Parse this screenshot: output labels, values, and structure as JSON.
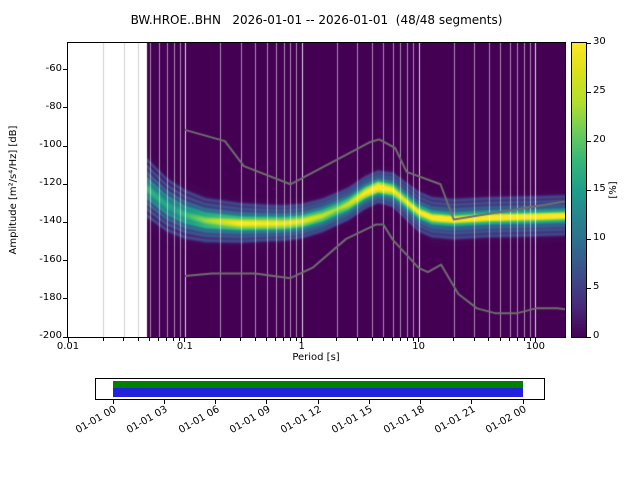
{
  "chart_data": {
    "type": "heatmap",
    "title": "BW.HROE..BHN   2026-01-01 -- 2026-01-01  (48/48 segments)",
    "xlabel": "Period [s]",
    "ylabel": "Amplitude [m²/s⁴/Hz] [dB]",
    "xscale": "log",
    "xlim": [
      0.01,
      179
    ],
    "ylim": [
      -200,
      -46
    ],
    "xticks": [
      0.01,
      0.1,
      1,
      10,
      100
    ],
    "xtick_labels": [
      "0.01",
      "0.1",
      "1",
      "10",
      "100"
    ],
    "yticks": [
      -60,
      -80,
      -100,
      -120,
      -140,
      -160,
      -180,
      -200
    ],
    "grid": "vertical log major+minor",
    "background_nodata": "#ffffff",
    "data_extent": {
      "period_min": 0.047,
      "period_max": 179
    },
    "colormap": {
      "name": "viridis",
      "stops": [
        [
          0,
          "#440154"
        ],
        [
          0.1,
          "#482878"
        ],
        [
          0.2,
          "#3e4989"
        ],
        [
          0.3,
          "#31688e"
        ],
        [
          0.4,
          "#26828e"
        ],
        [
          0.5,
          "#1f9e89"
        ],
        [
          0.6,
          "#35b779"
        ],
        [
          0.7,
          "#6dcd59"
        ],
        [
          0.8,
          "#b4de2c"
        ],
        [
          0.9,
          "#d8e219"
        ],
        [
          1,
          "#fde725"
        ]
      ]
    },
    "colorbar": {
      "label": "[%]",
      "ticks": [
        0,
        5,
        10,
        15,
        20,
        25,
        30
      ],
      "vmin": 0,
      "vmax": 30
    },
    "psd_distribution": {
      "mode_curve": {
        "periods": [
          0.047,
          0.07,
          0.1,
          0.15,
          0.3,
          0.7,
          1.0,
          1.5,
          2.5,
          3.5,
          4.5,
          6.0,
          8.0,
          10.0,
          13.0,
          20.0,
          40.0,
          100.0,
          179.0
        ],
        "db": [
          -122,
          -131,
          -136,
          -139,
          -140.5,
          -140.5,
          -139.5,
          -136.5,
          -130.5,
          -124.5,
          -121.5,
          -123,
          -129.5,
          -134.5,
          -137.5,
          -138.5,
          -137.5,
          -137,
          -136.5
        ]
      },
      "core_pct": {
        "periods": [
          0.047,
          0.08,
          0.15,
          0.3,
          1.0,
          2.0,
          3.0,
          4.5,
          7.0,
          10.0,
          15.0,
          179
        ],
        "values": [
          12,
          10,
          18,
          26,
          24,
          19,
          24,
          30,
          24,
          26,
          30,
          30
        ]
      },
      "core_sigma_db": {
        "periods": [
          0.047,
          0.1,
          0.3,
          1,
          5,
          10,
          20,
          179
        ],
        "values": [
          3,
          3,
          2.2,
          2,
          2,
          2,
          1.8,
          1.8
        ]
      },
      "haze_pct": {
        "periods": [
          0.047,
          0.1,
          0.3,
          1,
          5,
          10,
          179
        ],
        "values": [
          6,
          5,
          4.5,
          4.5,
          4,
          4,
          3.5
        ]
      },
      "haze_sigma_db": {
        "periods": [
          0.047,
          0.08,
          0.15,
          0.5,
          2,
          5,
          10,
          179
        ],
        "values": [
          7.5,
          6.5,
          5.5,
          4.5,
          4,
          4,
          5,
          5
        ]
      },
      "trace_offsets": [
        -1.9,
        -1.45,
        -1.05,
        -0.65,
        0.7,
        1.1,
        1.55,
        2.0
      ],
      "trace_pct": 5.5,
      "trace_sigma_db": 0.7
    },
    "noise_models": {
      "color": "#6e6e6e",
      "high": {
        "periods": [
          0.1,
          0.22,
          0.32,
          0.8,
          3.8,
          4.6,
          6.3,
          7.9,
          15.4,
          20.0,
          354.8
        ],
        "db": [
          -91.5,
          -97.4,
          -110.5,
          -120.0,
          -98.0,
          -96.5,
          -101.0,
          -113.5,
          -120.0,
          -138.5,
          -126.0
        ]
      },
      "low": {
        "periods": [
          0.1,
          0.17,
          0.4,
          0.8,
          1.24,
          2.4,
          4.3,
          5.0,
          6.0,
          10.0,
          12.0,
          15.6,
          21.9,
          31.6,
          45.0,
          70.0,
          101.0,
          154.0,
          328.0
        ],
        "db": [
          -168.0,
          -166.7,
          -166.7,
          -169.2,
          -163.7,
          -148.6,
          -141.1,
          -141.1,
          -149.0,
          -163.8,
          -166.0,
          -162.1,
          -177.5,
          -185.0,
          -187.5,
          -187.5,
          -185.0,
          -185.0,
          -187.5
        ]
      }
    }
  },
  "timeline": {
    "tick_labels": [
      "01-01 00",
      "01-01 03",
      "01-01 06",
      "01-01 09",
      "01-01 12",
      "01-01 15",
      "01-01 18",
      "01-01 21",
      "01-02 00"
    ],
    "coverage_top_color": "#008000",
    "coverage_bottom_color": "#2222dd"
  }
}
